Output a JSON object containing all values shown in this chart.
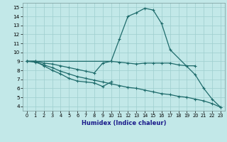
{
  "xlabel": "Humidex (Indice chaleur)",
  "xlim": [
    -0.5,
    23.5
  ],
  "ylim": [
    3.5,
    15.5
  ],
  "xticks": [
    0,
    1,
    2,
    3,
    4,
    5,
    6,
    7,
    8,
    9,
    10,
    11,
    12,
    13,
    14,
    15,
    16,
    17,
    18,
    19,
    20,
    21,
    22,
    23
  ],
  "yticks": [
    4,
    5,
    6,
    7,
    8,
    9,
    10,
    11,
    12,
    13,
    14,
    15
  ],
  "bg_color": "#c2e8e8",
  "grid_color": "#9ecece",
  "line_color": "#1e6b6b",
  "line1_x": [
    0,
    1,
    2,
    3,
    4,
    5,
    6,
    7,
    8,
    9,
    10,
    11,
    12,
    13,
    14,
    15,
    16,
    17,
    18,
    19,
    20
  ],
  "line1_y": [
    9.0,
    9.0,
    8.8,
    8.7,
    8.5,
    8.3,
    8.1,
    7.9,
    7.7,
    8.8,
    9.0,
    8.9,
    8.8,
    8.7,
    8.8,
    8.8,
    8.8,
    8.8,
    8.6,
    8.5,
    8.5
  ],
  "line2_x": [
    0,
    1,
    2,
    3,
    4,
    5,
    6,
    7,
    8,
    9,
    10
  ],
  "line2_y": [
    9.0,
    9.0,
    8.5,
    8.0,
    7.6,
    7.1,
    6.8,
    6.7,
    6.6,
    6.2,
    6.7
  ],
  "line3_x": [
    0,
    10,
    11,
    12,
    13,
    14,
    15,
    16,
    17,
    20,
    21,
    22,
    23
  ],
  "line3_y": [
    9.0,
    9.0,
    11.5,
    14.0,
    14.4,
    14.9,
    14.7,
    13.2,
    10.3,
    7.5,
    6.0,
    4.8,
    3.9
  ],
  "line4_x": [
    0,
    1,
    2,
    3,
    4,
    5,
    6,
    7,
    8,
    9,
    10,
    11,
    12,
    13,
    14,
    15,
    16,
    17,
    18,
    19,
    20,
    21,
    22,
    23
  ],
  "line4_y": [
    9.0,
    8.9,
    8.6,
    8.3,
    7.9,
    7.6,
    7.3,
    7.1,
    6.9,
    6.7,
    6.5,
    6.3,
    6.1,
    6.0,
    5.8,
    5.6,
    5.4,
    5.3,
    5.1,
    5.0,
    4.8,
    4.6,
    4.3,
    3.9
  ]
}
